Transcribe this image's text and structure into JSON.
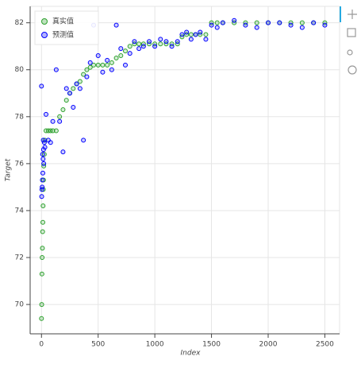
{
  "chart_data": {
    "type": "scatter",
    "x_label": "Index",
    "y_label": "Target",
    "xlim": [
      -100,
      2630
    ],
    "ylim": [
      68.75,
      82.7
    ],
    "xticks": [
      0,
      500,
      1000,
      1500,
      2000,
      2500
    ],
    "yticks": [
      70,
      72,
      74,
      76,
      78,
      80,
      82
    ],
    "grid": true,
    "legend": "top-left",
    "x": [
      0,
      2,
      4,
      6,
      8,
      10,
      12,
      14,
      16,
      18,
      20,
      25,
      30,
      40,
      60,
      80,
      100,
      130,
      160,
      190,
      220,
      250,
      280,
      310,
      340,
      370,
      400,
      430,
      460,
      500,
      540,
      580,
      620,
      660,
      700,
      740,
      780,
      820,
      860,
      900,
      950,
      1000,
      1050,
      1100,
      1150,
      1200,
      1240,
      1280,
      1320,
      1360,
      1400,
      1450,
      1500,
      1550,
      1600,
      1700,
      1800,
      1900,
      2000,
      2100,
      2200,
      2300,
      2400,
      2500
    ],
    "series": [
      {
        "name": "真实值",
        "color": "#2ca02c",
        "values": [
          69.4,
          70.0,
          71.3,
          72.0,
          72.4,
          73.1,
          73.5,
          74.2,
          74.9,
          75.3,
          75.9,
          76.4,
          77.0,
          77.4,
          77.4,
          77.4,
          77.4,
          77.4,
          78.0,
          78.3,
          78.7,
          79.0,
          79.2,
          79.4,
          79.5,
          79.8,
          80.0,
          80.1,
          80.2,
          80.2,
          80.2,
          80.2,
          80.3,
          80.5,
          80.6,
          80.8,
          81.0,
          81.1,
          81.1,
          81.1,
          81.1,
          81.1,
          81.1,
          81.1,
          81.1,
          81.1,
          81.4,
          81.5,
          81.5,
          81.5,
          81.5,
          81.5,
          82.0,
          82.0,
          82.0,
          82.0,
          82.0,
          82.0,
          82.0,
          82.0,
          82.0,
          82.0,
          82.0,
          82.0
        ]
      },
      {
        "name": "预测值",
        "color": "#0000ff",
        "values": [
          79.3,
          74.6,
          74.9,
          75.0,
          75.3,
          76.4,
          75.6,
          76.2,
          77.0,
          76.6,
          76.0,
          76.9,
          76.7,
          78.1,
          77.0,
          76.9,
          77.8,
          80.0,
          77.8,
          76.5,
          79.2,
          79.0,
          78.4,
          79.4,
          79.2,
          77.0,
          79.7,
          80.3,
          81.9,
          80.6,
          79.9,
          80.4,
          80.0,
          81.9,
          80.9,
          80.2,
          80.7,
          81.2,
          80.9,
          81.0,
          81.2,
          81.0,
          81.3,
          81.2,
          81.0,
          81.2,
          81.5,
          81.6,
          81.3,
          81.5,
          81.6,
          81.3,
          81.9,
          81.8,
          82.0,
          82.1,
          81.9,
          81.8,
          82.0,
          82.0,
          81.9,
          81.8,
          82.0,
          81.9
        ]
      }
    ]
  }
}
